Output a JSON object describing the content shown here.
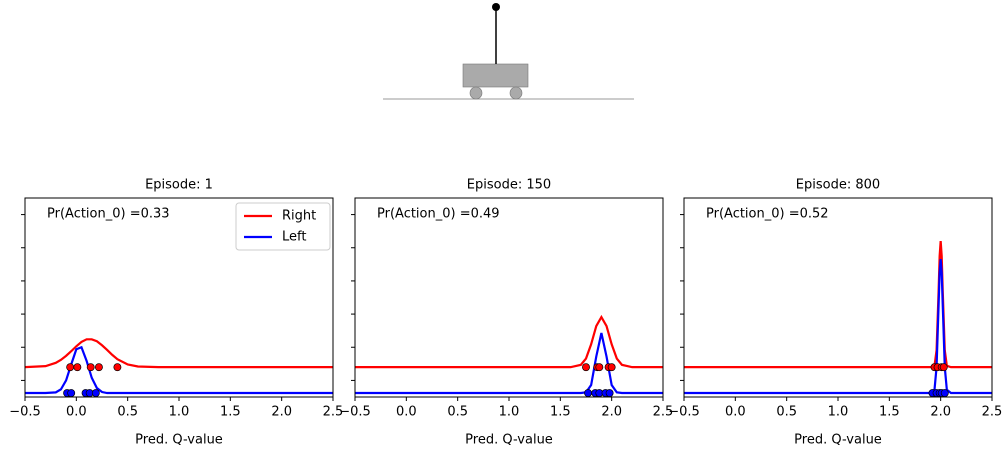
{
  "chart_data": [
    {
      "type": "line",
      "title": "Episode: 1",
      "annotation": "Pr(Action_0) =0.33",
      "xlabel": "Pred. Q-value",
      "legend": "upper right",
      "xlim": [
        -0.5,
        2.5
      ],
      "ylim": [
        0,
        6
      ],
      "yticks": [
        0.5,
        1.5,
        2.5,
        3.5,
        4.5,
        5.5
      ],
      "xticks": [
        {
          "value": -0.5,
          "label": "−0.5"
        },
        {
          "value": 0,
          "label": "0.0"
        },
        0.5,
        {
          "value": 1,
          "label": "1.0"
        },
        1.5,
        {
          "value": 2,
          "label": "2.0"
        },
        2.5
      ],
      "x": [
        -0.5,
        -0.3,
        -0.2,
        -0.15,
        -0.1,
        -0.05,
        0,
        0.05,
        0.1,
        0.15,
        0.2,
        0.25,
        0.3,
        0.35,
        0.4,
        0.5,
        0.6,
        0.8,
        1.5,
        2.5
      ],
      "series": [
        {
          "name": "Right",
          "color": "#ff0000",
          "values": [
            0.9,
            0.93,
            1.03,
            1.12,
            1.24,
            1.38,
            1.53,
            1.66,
            1.74,
            1.74,
            1.68,
            1.56,
            1.42,
            1.27,
            1.14,
            0.98,
            0.92,
            0.9,
            0.9,
            0.9
          ],
          "samples": {
            "x": [
              -0.06,
              0.01,
              0.14,
              0.22,
              0.4
            ],
            "y": [
              0.9,
              0.9,
              0.9,
              0.9,
              0.9
            ]
          }
        },
        {
          "name": "Left",
          "color": "#0000ff",
          "values": [
            0.12,
            0.12,
            0.14,
            0.23,
            0.5,
            0.98,
            1.44,
            1.5,
            1.09,
            0.58,
            0.27,
            0.15,
            0.12,
            0.12,
            0.12,
            0.12,
            0.12,
            0.12,
            0.12,
            0.12
          ],
          "samples": {
            "x": [
              -0.09,
              -0.05,
              0.09,
              0.13,
              0.19
            ],
            "y": [
              0.12,
              0.12,
              0.12,
              0.12,
              0.12
            ]
          }
        }
      ]
    },
    {
      "type": "line",
      "title": "Episode: 150",
      "annotation": "Pr(Action_0) =0.49",
      "xlabel": "Pred. Q-value",
      "xlim": [
        -0.5,
        2.5
      ],
      "ylim": [
        0,
        6
      ],
      "yticks": [
        0.5,
        1.5,
        2.5,
        3.5,
        4.5,
        5.5
      ],
      "xticks": [
        {
          "value": -0.5,
          "label": "−0.5"
        },
        {
          "value": 0,
          "label": "0.0"
        },
        0.5,
        {
          "value": 1,
          "label": "1.0"
        },
        1.5,
        {
          "value": 2,
          "label": "2.0"
        },
        2.5
      ],
      "x": [
        -0.5,
        1.0,
        1.6,
        1.7,
        1.75,
        1.8,
        1.85,
        1.9,
        1.95,
        2.0,
        2.05,
        2.1,
        2.2,
        2.5
      ],
      "series": [
        {
          "name": "Right",
          "color": "#ff0000",
          "values": [
            0.9,
            0.9,
            0.9,
            0.97,
            1.16,
            1.59,
            2.14,
            2.41,
            2.14,
            1.59,
            1.16,
            0.97,
            0.9,
            0.9
          ],
          "samples": {
            "x": [
              1.75,
              1.86,
              1.88,
              1.97,
              2.0
            ],
            "y": [
              0.9,
              0.9,
              0.9,
              0.9,
              0.9
            ]
          }
        },
        {
          "name": "Left",
          "color": "#0000ff",
          "values": [
            0.12,
            0.12,
            0.12,
            0.12,
            0.14,
            0.36,
            1.22,
            1.93,
            1.22,
            0.36,
            0.14,
            0.12,
            0.12,
            0.12
          ],
          "samples": {
            "x": [
              1.77,
              1.84,
              1.88,
              1.94,
              1.98
            ],
            "y": [
              0.12,
              0.12,
              0.12,
              0.12,
              0.12
            ]
          }
        }
      ]
    },
    {
      "type": "line",
      "title": "Episode: 800",
      "annotation": "Pr(Action_0) =0.52",
      "xlabel": "Pred. Q-value",
      "xlim": [
        -0.5,
        2.5
      ],
      "ylim": [
        0,
        6
      ],
      "yticks": [
        0.5,
        1.5,
        2.5,
        3.5,
        4.5,
        5.5
      ],
      "xticks": [
        {
          "value": -0.5,
          "label": "−0.5"
        },
        {
          "value": 0,
          "label": "0.0"
        },
        0.5,
        {
          "value": 1,
          "label": "1.0"
        },
        1.5,
        {
          "value": 2,
          "label": "2.0"
        },
        2.5
      ],
      "x": [
        -0.5,
        1.0,
        1.9,
        1.94,
        1.96,
        1.98,
        1.99,
        2.0,
        2.01,
        2.02,
        2.04,
        2.06,
        2.1,
        2.5
      ],
      "series": [
        {
          "name": "Right",
          "color": "#ff0000",
          "values": [
            0.9,
            0.9,
            0.9,
            0.94,
            1.41,
            3.21,
            4.25,
            4.7,
            4.25,
            3.21,
            1.41,
            0.94,
            0.9,
            0.9
          ],
          "samples": {
            "x": [
              1.94,
              1.97,
              2.01,
              2.03
            ],
            "y": [
              0.9,
              0.9,
              0.9,
              0.9
            ]
          }
        },
        {
          "name": "Left",
          "color": "#0000ff",
          "values": [
            0.12,
            0.12,
            0.12,
            0.22,
            0.9,
            2.79,
            3.76,
            4.16,
            3.76,
            2.79,
            0.9,
            0.22,
            0.12,
            0.12
          ],
          "samples": {
            "x": [
              1.92,
              1.96,
              1.99,
              2.01,
              2.04
            ],
            "y": [
              0.12,
              0.12,
              0.12,
              0.12,
              0.12
            ]
          }
        }
      ]
    }
  ]
}
